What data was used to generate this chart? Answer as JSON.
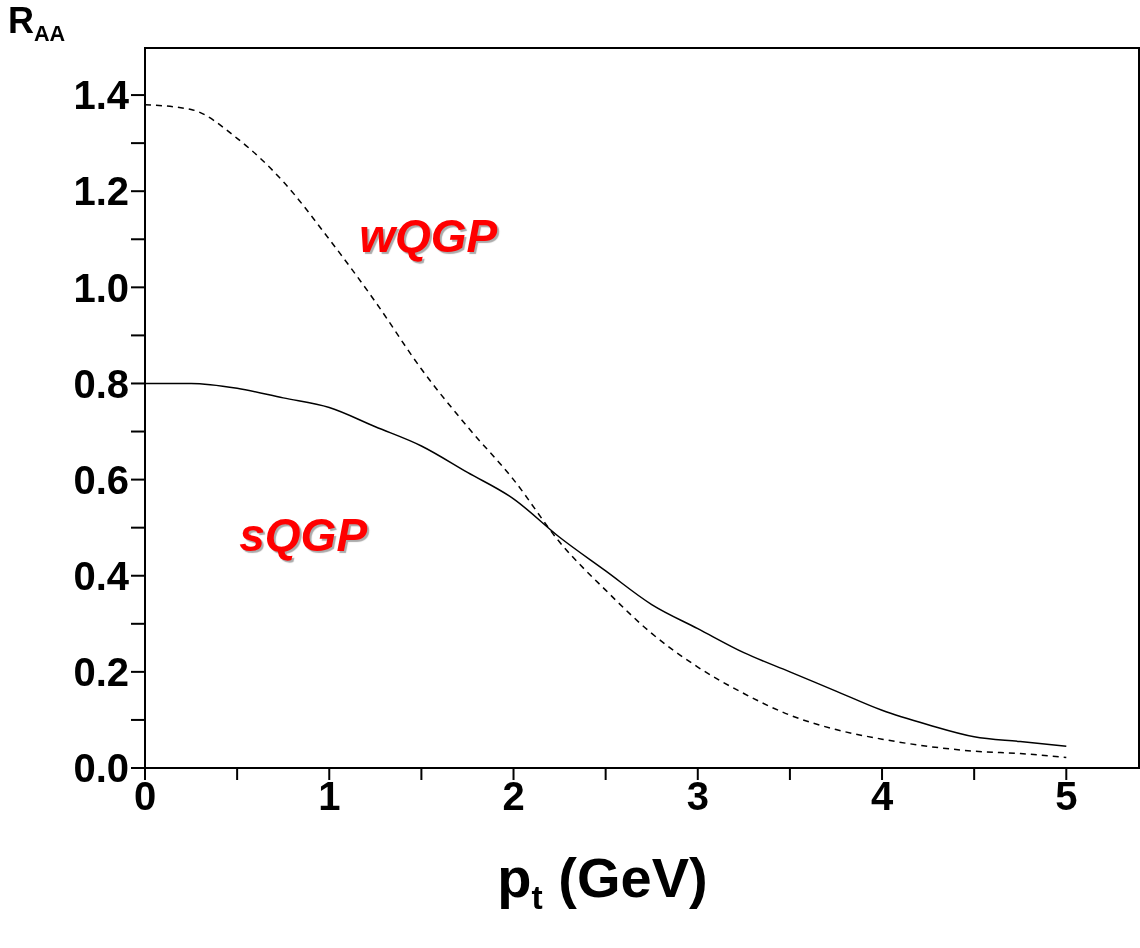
{
  "chart_data": {
    "type": "line",
    "xlabel": "p$_{t}$ (GeV)",
    "ylabel": "R$_{AA}$",
    "xlim": [
      0,
      5.4
    ],
    "xticks": [
      0,
      {
        "value": 0.5,
        "label": null
      },
      1,
      {
        "value": 1.5,
        "label": null
      },
      2,
      {
        "value": 2.5,
        "label": null
      },
      3,
      {
        "value": 3.5,
        "label": null
      },
      4,
      {
        "value": 4.5,
        "label": null
      },
      5
    ],
    "ylim": [
      0,
      1.5
    ],
    "yticks": [
      "0.0",
      {
        "value": 0.1,
        "label": null
      },
      {
        "value": 0.2,
        "label": "0.2"
      },
      {
        "value": 0.3,
        "label": null
      },
      {
        "value": 0.4,
        "label": "0.4"
      },
      {
        "value": 0.5,
        "label": null
      },
      {
        "value": 0.6,
        "label": "0.6"
      },
      {
        "value": 0.7,
        "label": null
      },
      {
        "value": 0.8,
        "label": "0.8"
      },
      {
        "value": 0.9,
        "label": null
      },
      {
        "value": 1.0,
        "label": "1.0"
      },
      {
        "value": 1.1,
        "label": null
      },
      {
        "value": 1.2,
        "label": "1.2"
      },
      {
        "value": 1.3,
        "label": null
      },
      {
        "value": 1.4,
        "label": "1.4"
      }
    ],
    "marker": "none",
    "series": [
      {
        "name": "wQGP",
        "color": "#000000",
        "line_style": "dashed",
        "x": [
          0,
          0.25,
          0.5,
          0.75,
          1,
          1.25,
          1.5,
          1.75,
          2,
          2.25,
          2.5,
          2.75,
          3,
          3.25,
          3.5,
          3.75,
          4,
          4.25,
          4.5,
          4.75,
          5
        ],
        "values": [
          1.38,
          1.37,
          1.31,
          1.22,
          1.1,
          0.97,
          0.83,
          0.71,
          0.6,
          0.47,
          0.37,
          0.28,
          0.21,
          0.155,
          0.11,
          0.08,
          0.06,
          0.045,
          0.035,
          0.03,
          0.022
        ]
      },
      {
        "name": "sQGP",
        "color": "#000000",
        "line_style": "solid",
        "x": [
          0,
          0.25,
          0.5,
          0.75,
          1,
          1.25,
          1.5,
          1.75,
          2,
          2.25,
          2.5,
          2.75,
          3,
          3.25,
          3.5,
          3.75,
          4,
          4.25,
          4.5,
          4.75,
          5
        ],
        "values": [
          0.8,
          0.8,
          0.79,
          0.77,
          0.75,
          0.71,
          0.67,
          0.615,
          0.56,
          0.48,
          0.41,
          0.34,
          0.29,
          0.24,
          0.2,
          0.16,
          0.12,
          0.09,
          0.065,
          0.055,
          0.045
        ]
      }
    ]
  }
}
